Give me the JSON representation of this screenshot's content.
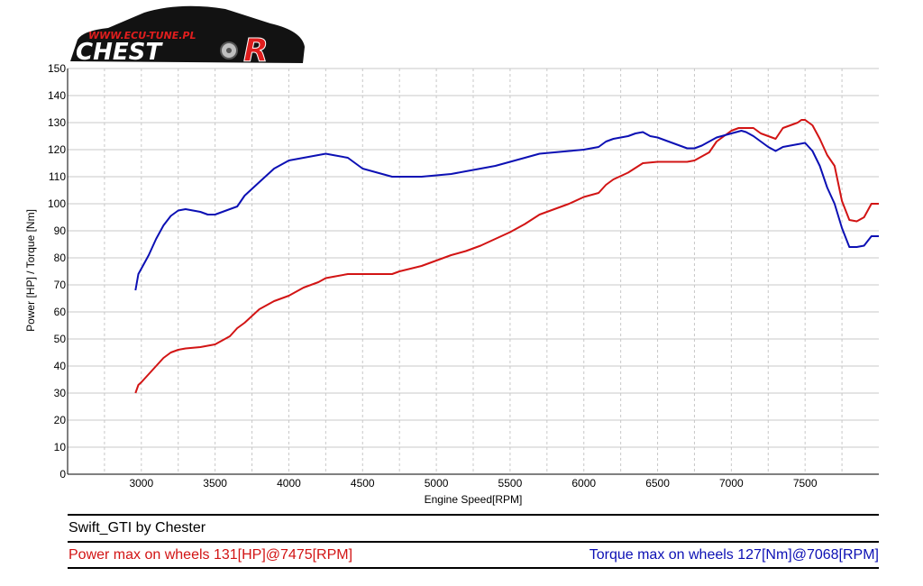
{
  "logo": {
    "url_text": "WWW.ECU-TUNE.PL",
    "brand_text": "CHEST",
    "brand_letter": "R"
  },
  "footer": {
    "title": "Swift_GTI by Chester",
    "power_summary": "Power max on wheels 131[HP]@7475[RPM]",
    "torque_summary": "Torque max on wheels 127[Nm]@7068[RPM]"
  },
  "colors": {
    "power": "#d21414",
    "torque": "#0c10b4",
    "grid": "#c8c8c8",
    "axis": "#000000"
  },
  "chart_data": {
    "type": "line",
    "xlabel": "Engine Speed[RPM]",
    "ylabel": "Power [HP] / Torque [Nm]",
    "xlim": [
      2500,
      8000
    ],
    "ylim": [
      0,
      150
    ],
    "x_ticks": [
      3000,
      3500,
      4000,
      4500,
      5000,
      5500,
      6000,
      6500,
      7000,
      7500
    ],
    "y_ticks": [
      0,
      10,
      20,
      30,
      40,
      50,
      60,
      70,
      80,
      90,
      100,
      110,
      120,
      130,
      140,
      150
    ],
    "grid": true,
    "series": [
      {
        "key": "power",
        "color": "#d21414",
        "x": [
          2960,
          2980,
          3000,
          3050,
          3100,
          3150,
          3200,
          3250,
          3300,
          3400,
          3500,
          3550,
          3600,
          3650,
          3700,
          3800,
          3900,
          4000,
          4100,
          4200,
          4250,
          4300,
          4400,
          4500,
          4600,
          4700,
          4750,
          4900,
          5000,
          5100,
          5200,
          5300,
          5400,
          5500,
          5600,
          5700,
          5800,
          5900,
          6000,
          6100,
          6150,
          6200,
          6300,
          6400,
          6500,
          6600,
          6700,
          6750,
          6850,
          6900,
          7000,
          7050,
          7100,
          7150,
          7200,
          7250,
          7300,
          7350,
          7400,
          7450,
          7475,
          7500,
          7550,
          7600,
          7650,
          7700,
          7750,
          7800,
          7850,
          7900,
          7950,
          8000
        ],
        "values": [
          30,
          33,
          34,
          37,
          40,
          43,
          45,
          46,
          46.5,
          47,
          48,
          49.5,
          51,
          54,
          56,
          61,
          64,
          66,
          69,
          71,
          72.5,
          73,
          74,
          74,
          74,
          74,
          75,
          77,
          79,
          81,
          82.5,
          84.5,
          87,
          89.5,
          92.5,
          96,
          98,
          100,
          102.5,
          104,
          107,
          109,
          111.5,
          115,
          115.5,
          115.5,
          115.5,
          116,
          119,
          123,
          127,
          128,
          128,
          128,
          126,
          125,
          124,
          128,
          129,
          130,
          131,
          131,
          129,
          124,
          118,
          114,
          101,
          94,
          93.5,
          95,
          100,
          100
        ]
      },
      {
        "key": "torque",
        "color": "#0c10b4",
        "x": [
          2960,
          2980,
          3000,
          3050,
          3100,
          3150,
          3200,
          3250,
          3300,
          3400,
          3450,
          3500,
          3550,
          3600,
          3650,
          3700,
          3800,
          3900,
          4000,
          4100,
          4200,
          4250,
          4300,
          4400,
          4500,
          4600,
          4700,
          4750,
          4900,
          5000,
          5100,
          5200,
          5300,
          5400,
          5500,
          5600,
          5700,
          5800,
          5900,
          6000,
          6100,
          6150,
          6200,
          6300,
          6350,
          6400,
          6450,
          6500,
          6600,
          6700,
          6750,
          6800,
          6900,
          7000,
          7068,
          7100,
          7150,
          7200,
          7250,
          7300,
          7350,
          7400,
          7450,
          7500,
          7550,
          7600,
          7650,
          7700,
          7750,
          7800,
          7850,
          7900,
          7950,
          8000
        ],
        "values": [
          68,
          74,
          76,
          81,
          87,
          92,
          95.5,
          97.5,
          98,
          97,
          96,
          96,
          97,
          98,
          99,
          103,
          108,
          113,
          116,
          117,
          118,
          118.5,
          118,
          117,
          113,
          111.5,
          110,
          110,
          110,
          110.5,
          111,
          112,
          113,
          114,
          115.5,
          117,
          118.5,
          119,
          119.5,
          120,
          121,
          123,
          124,
          125,
          126,
          126.5,
          125,
          124.5,
          122.5,
          120.5,
          120.5,
          121.5,
          124.5,
          126,
          127,
          126.5,
          125,
          123,
          121,
          119.5,
          121,
          121.5,
          122,
          122.5,
          119.5,
          114,
          106,
          100,
          91,
          84,
          84,
          84.5,
          88,
          88
        ]
      }
    ]
  }
}
